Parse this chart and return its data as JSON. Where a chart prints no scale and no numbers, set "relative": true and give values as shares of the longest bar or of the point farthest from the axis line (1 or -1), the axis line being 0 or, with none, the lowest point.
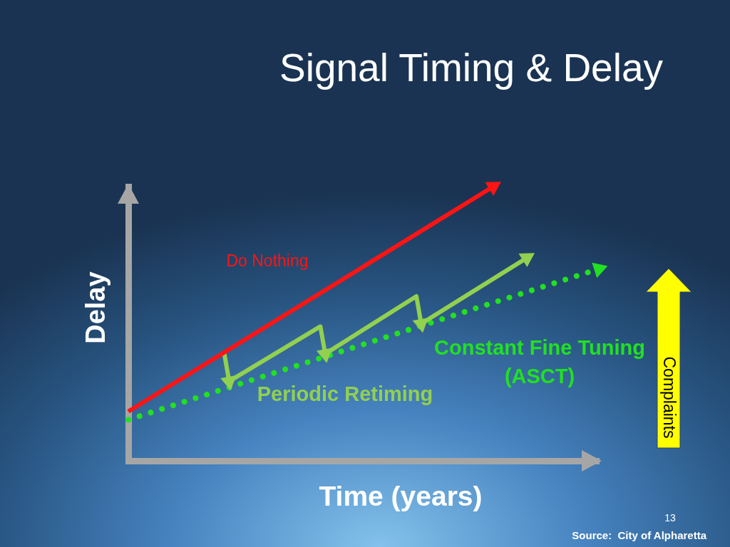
{
  "chart_data": {
    "type": "line",
    "relative": true,
    "title": "Signal Timing & Delay",
    "xlabel": "Time (years)",
    "ylabel": "Delay",
    "annotations": [
      "Complaints",
      "13",
      "Source:  City of Alpharetta"
    ],
    "categories": [
      null,
      null,
      null,
      null,
      null,
      null,
      null,
      null,
      null,
      null,
      null,
      null,
      null,
      null,
      null,
      null,
      null,
      null,
      null,
      null,
      null,
      null,
      null,
      null,
      null,
      null,
      null,
      null,
      null,
      null,
      null,
      null,
      null,
      null,
      null,
      null,
      null,
      null,
      null,
      null,
      null,
      null,
      null,
      null,
      null,
      null,
      null,
      null,
      null,
      null,
      null,
      null,
      null,
      null,
      null,
      null,
      null,
      null,
      null,
      null,
      null,
      null,
      null,
      null,
      null,
      null,
      null,
      null,
      null,
      null,
      null,
      null,
      null,
      null,
      null,
      null,
      null,
      null,
      null,
      null,
      null,
      null,
      null,
      null,
      null,
      null,
      null,
      null,
      null,
      null,
      null,
      null,
      null,
      null,
      null,
      null,
      null,
      null,
      null
    ],
    "series": [
      {
        "name": "Do Nothing",
        "color": "#ff1414",
        "line_style": "solid",
        "values": [
          0.18,
          null,
          null,
          null,
          null,
          null,
          null,
          null,
          null,
          null,
          null,
          null,
          null,
          null,
          null,
          null,
          null,
          null,
          null,
          null,
          null,
          null,
          null,
          null,
          null,
          null,
          null,
          null,
          null,
          null,
          null,
          null,
          null,
          null,
          null,
          null,
          null,
          null,
          null,
          null,
          null,
          null,
          null,
          null,
          null,
          null,
          null,
          null,
          null,
          null,
          null,
          null,
          null,
          null,
          null,
          null,
          null,
          null,
          null,
          null,
          null,
          null,
          null,
          null,
          null,
          null,
          null,
          null,
          null,
          null,
          null,
          null,
          null,
          null,
          null,
          null,
          1,
          null,
          null,
          null,
          null,
          null,
          null,
          null,
          null,
          null,
          null,
          null,
          null,
          null,
          null,
          null,
          null,
          null,
          null,
          null,
          null,
          null,
          null
        ]
      },
      {
        "name": "Periodic Retiming",
        "color": "#92d050",
        "line_style": "solid",
        "values": [
          null,
          null,
          null,
          null,
          null,
          null,
          null,
          null,
          null,
          null,
          null,
          null,
          null,
          null,
          null,
          null,
          null,
          null,
          null,
          null,
          0.39,
          0.29,
          null,
          null,
          null,
          null,
          null,
          null,
          null,
          null,
          null,
          null,
          null,
          null,
          null,
          null,
          null,
          null,
          null,
          null,
          0.49,
          0.39,
          null,
          null,
          null,
          null,
          null,
          null,
          null,
          null,
          null,
          null,
          null,
          null,
          null,
          null,
          null,
          null,
          null,
          null,
          0.6,
          0.5,
          null,
          null,
          null,
          null,
          null,
          null,
          null,
          null,
          null,
          null,
          null,
          null,
          null,
          null,
          null,
          null,
          null,
          null,
          null,
          null,
          null,
          0.74,
          null,
          null,
          null,
          null,
          null,
          null,
          null,
          null,
          null,
          null,
          null,
          null,
          null,
          null,
          null
        ]
      },
      {
        "name": "Constant Fine Tuning (ASCT)",
        "color": "#22e022",
        "line_style": "dotted",
        "values": [
          0.15,
          null,
          null,
          null,
          null,
          null,
          null,
          null,
          null,
          null,
          null,
          null,
          null,
          null,
          null,
          null,
          null,
          null,
          null,
          null,
          null,
          null,
          null,
          null,
          null,
          null,
          null,
          null,
          null,
          null,
          null,
          null,
          null,
          null,
          null,
          null,
          null,
          null,
          null,
          null,
          null,
          null,
          null,
          null,
          null,
          null,
          null,
          null,
          null,
          null,
          null,
          null,
          null,
          null,
          null,
          null,
          null,
          null,
          null,
          null,
          null,
          null,
          null,
          null,
          null,
          null,
          null,
          null,
          null,
          null,
          null,
          null,
          null,
          null,
          null,
          null,
          null,
          null,
          null,
          null,
          null,
          null,
          null,
          null,
          null,
          null,
          null,
          null,
          null,
          null,
          null,
          null,
          null,
          null,
          null,
          null,
          null,
          null,
          0.7
        ]
      }
    ]
  }
}
